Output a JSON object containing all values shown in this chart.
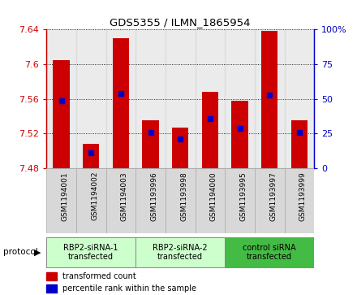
{
  "title": "GDS5355 / ILMN_1865954",
  "samples": [
    "GSM1194001",
    "GSM1194002",
    "GSM1194003",
    "GSM1193996",
    "GSM1193998",
    "GSM1194000",
    "GSM1193995",
    "GSM1193997",
    "GSM1193999"
  ],
  "bar_values": [
    7.605,
    7.508,
    7.63,
    7.535,
    7.527,
    7.568,
    7.558,
    7.638,
    7.535
  ],
  "percentile_values": [
    7.558,
    7.498,
    7.566,
    7.521,
    7.514,
    7.537,
    7.526,
    7.564,
    7.521
  ],
  "ymin": 7.48,
  "ymax": 7.64,
  "yticks": [
    7.48,
    7.52,
    7.56,
    7.6,
    7.64
  ],
  "right_yticks": [
    0,
    25,
    50,
    75,
    100
  ],
  "bar_color": "#cc0000",
  "percentile_color": "#0000cc",
  "groups": [
    {
      "label": "RBP2-siRNA-1\ntransfected",
      "start": 0,
      "end": 3,
      "color": "#ccffcc"
    },
    {
      "label": "RBP2-siRNA-2\ntransfected",
      "start": 3,
      "end": 6,
      "color": "#ccffcc"
    },
    {
      "label": "control siRNA\ntransfected",
      "start": 6,
      "end": 9,
      "color": "#44bb44"
    }
  ],
  "bar_width": 0.55,
  "plot_bg": "#ffffff"
}
